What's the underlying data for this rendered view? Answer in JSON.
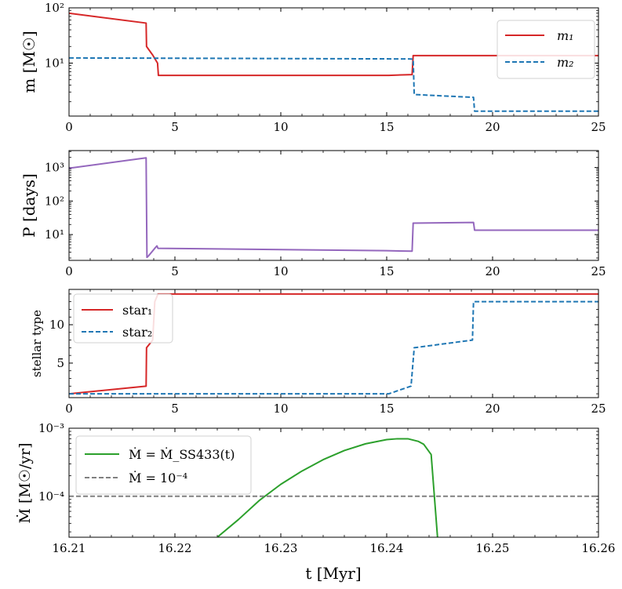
{
  "chart_data": [
    {
      "type": "line",
      "name": "mass",
      "ylabel": "m [M☉]",
      "yscale": "log",
      "ylim": [
        1.1,
        100
      ],
      "xlim": [
        0,
        25
      ],
      "xticks": [
        0,
        5,
        10,
        15,
        20,
        25
      ],
      "yticks": [
        {
          "v": 10,
          "label": "10¹"
        },
        {
          "v": 100,
          "label": "10²"
        }
      ],
      "legend_position": "top-right",
      "series": [
        {
          "name": "m₁",
          "color": "#d62728",
          "style": "solid",
          "points": [
            [
              0,
              80
            ],
            [
              3.64,
              53
            ],
            [
              3.66,
              20
            ],
            [
              3.95,
              14
            ],
            [
              4.18,
              10
            ],
            [
              4.22,
              6
            ],
            [
              15.1,
              6
            ],
            [
              16.2,
              6.2
            ],
            [
              16.25,
              13.7
            ],
            [
              25,
              13.7
            ]
          ]
        },
        {
          "name": "m₂",
          "color": "#1f77b4",
          "style": "dashed",
          "points": [
            [
              0,
              12.4
            ],
            [
              16.05,
              11.9
            ],
            [
              16.25,
              11.8
            ],
            [
              16.3,
              2.7
            ],
            [
              19.1,
              2.4
            ],
            [
              19.15,
              1.35
            ],
            [
              25,
              1.35
            ]
          ]
        }
      ]
    },
    {
      "type": "line",
      "name": "period",
      "ylabel": "P [days]",
      "yscale": "log",
      "ylim": [
        1.7,
        3200
      ],
      "xlim": [
        0,
        25
      ],
      "xticks": [
        0,
        5,
        10,
        15,
        20,
        25
      ],
      "yticks": [
        {
          "v": 10,
          "label": "10¹"
        },
        {
          "v": 100,
          "label": "10²"
        },
        {
          "v": 1000,
          "label": "10³"
        }
      ],
      "series": [
        {
          "name": "P",
          "color": "#9467bd",
          "style": "solid",
          "points": [
            [
              0,
              950
            ],
            [
              3.64,
              1950
            ],
            [
              3.68,
              2.1
            ],
            [
              3.75,
              2.3
            ],
            [
              4.05,
              3.9
            ],
            [
              4.15,
              4.6
            ],
            [
              4.2,
              3.9
            ],
            [
              15,
              3.3
            ],
            [
              16.2,
              3.2
            ],
            [
              16.25,
              22
            ],
            [
              19.1,
              23
            ],
            [
              19.15,
              13.5
            ],
            [
              25,
              13.5
            ]
          ]
        }
      ]
    },
    {
      "type": "line",
      "name": "stellar-type",
      "ylabel": "stellar type",
      "yscale": "linear",
      "ylim": [
        0.5,
        14.6
      ],
      "xlim": [
        0,
        25
      ],
      "xticks": [
        0,
        5,
        10,
        15,
        20,
        25
      ],
      "yticks": [
        {
          "v": 5,
          "label": "5"
        },
        {
          "v": 10,
          "label": "10"
        }
      ],
      "legend_position": "top-left",
      "series": [
        {
          "name": "star₁",
          "color": "#d62728",
          "style": "solid",
          "points": [
            [
              0,
              1
            ],
            [
              3.64,
              2
            ],
            [
              3.66,
              7
            ],
            [
              3.95,
              8
            ],
            [
              4.05,
              13
            ],
            [
              4.2,
              14
            ],
            [
              25,
              14
            ]
          ]
        },
        {
          "name": "star₂",
          "color": "#1f77b4",
          "style": "dashed",
          "points": [
            [
              0,
              1
            ],
            [
              15.1,
              1
            ],
            [
              16.15,
              2
            ],
            [
              16.3,
              7
            ],
            [
              19.05,
              8
            ],
            [
              19.1,
              13
            ],
            [
              25,
              13
            ]
          ]
        }
      ]
    },
    {
      "type": "line",
      "name": "mass-loss",
      "ylabel": "Ṁ [M☉/yr]",
      "xlabel": "t [Myr]",
      "yscale": "log",
      "ylim": [
        2.5e-05,
        0.001
      ],
      "xlim": [
        16.21,
        16.26
      ],
      "xticks": [
        16.21,
        16.22,
        16.23,
        16.24,
        16.25,
        16.26
      ],
      "yticks": [
        {
          "v": 0.0001,
          "label": "10⁻⁴"
        },
        {
          "v": 0.001,
          "label": "10⁻³"
        }
      ],
      "legend_position": "top-left",
      "series": [
        {
          "name": "Ṁ = Ṁ_SS433(t)",
          "color": "#2ca02c",
          "style": "solid",
          "points": [
            [
              16.224,
              2.5e-05
            ],
            [
              16.226,
              4.55e-05
            ],
            [
              16.228,
              8.75e-05
            ],
            [
              16.23,
              0.00015
            ],
            [
              16.232,
              0.000235
            ],
            [
              16.234,
              0.000345
            ],
            [
              16.236,
              0.00047
            ],
            [
              16.238,
              0.00059
            ],
            [
              16.24,
              0.00068
            ],
            [
              16.241,
              0.0007
            ],
            [
              16.242,
              0.0007
            ],
            [
              16.243,
              0.00064
            ],
            [
              16.2435,
              0.00058
            ],
            [
              16.2442,
              0.00041
            ],
            [
              16.2448,
              2.5e-05
            ]
          ]
        },
        {
          "name": "Ṁ = 10⁻⁴",
          "color": "#808080",
          "style": "dashed",
          "points": [
            [
              16.21,
              0.0001
            ],
            [
              16.26,
              0.0001
            ]
          ]
        }
      ]
    }
  ]
}
